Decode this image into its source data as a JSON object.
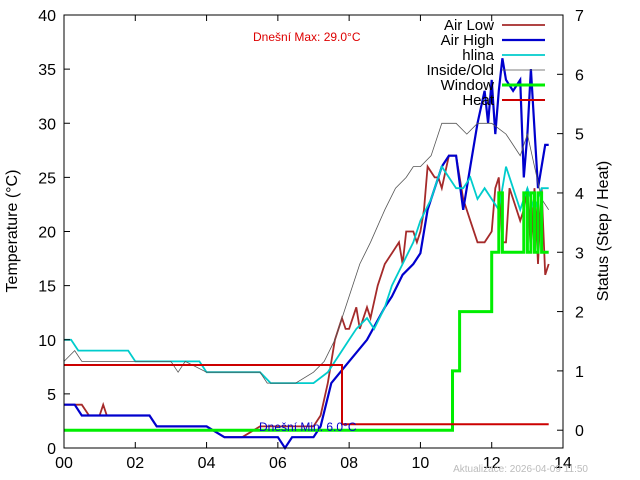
{
  "chart_data": {
    "type": "line",
    "x_unit": "hours",
    "xlim": [
      0,
      14
    ],
    "x_ticks": [
      "00",
      "02",
      "04",
      "06",
      "08",
      "10",
      "12",
      "14"
    ],
    "ylim": [
      0,
      40
    ],
    "y_ticks": [
      "0",
      "5",
      "10",
      "15",
      "20",
      "25",
      "30",
      "35",
      "40"
    ],
    "y2lim": [
      -0.3,
      7
    ],
    "y2_ticks": [
      "0",
      "1",
      "2",
      "3",
      "4",
      "5",
      "6",
      "7"
    ],
    "ylabel": "Temperature (°C)",
    "y2label": "Status (Step / Heat)",
    "legend_position": "top-right",
    "annotations": {
      "max_label": "Dnešní Max: 29.0°C",
      "min_label": "Dnešní Min: 6.0°C",
      "updated": "Aktualizace: 2026-04-09 11:50"
    },
    "colors": {
      "air_low": "#a52a2a",
      "air_high": "#0000cd",
      "hlina": "#00cccc",
      "inside": "#555555",
      "window": "#00ee00",
      "heat": "#cc0000"
    },
    "series": [
      {
        "name": "Air Low",
        "axis": "y1",
        "color": "#a52a2a",
        "width": 1.8,
        "x": [
          0,
          0.5,
          0.7,
          1.0,
          1.1,
          1.2,
          1.5,
          2.0,
          2.4,
          2.6,
          2.7,
          3.5,
          4.0,
          4.5,
          4.7,
          5.0,
          5.5,
          6.0,
          6.5,
          7.0,
          7.2,
          7.4,
          7.6,
          7.8,
          7.9,
          8.0,
          8.2,
          8.3,
          8.5,
          8.6,
          8.8,
          9.0,
          9.2,
          9.4,
          9.5,
          9.6,
          9.8,
          9.9,
          10.0,
          10.1,
          10.2,
          10.4,
          10.5,
          10.6,
          10.8,
          11.0,
          11.2,
          11.4,
          11.6,
          11.8,
          12.0,
          12.1,
          12.2,
          12.3,
          12.4,
          12.5,
          12.6,
          12.8,
          12.9,
          13.0,
          13.1,
          13.2,
          13.3,
          13.4,
          13.5,
          13.6
        ],
        "y": [
          4,
          4,
          3,
          3,
          4,
          3,
          3,
          3,
          3,
          2,
          2,
          2,
          2,
          1,
          1,
          1,
          2,
          2,
          2,
          2,
          3,
          6,
          10,
          12,
          11,
          11,
          13,
          11,
          13,
          12,
          15,
          17,
          18,
          19,
          17,
          20,
          20,
          19,
          20,
          22,
          26,
          25,
          25,
          24,
          27,
          27,
          23,
          21,
          19,
          19,
          20,
          24,
          25,
          19,
          19,
          24,
          23,
          21,
          22,
          24,
          18,
          24,
          17,
          24,
          16,
          17
        ]
      },
      {
        "name": "Air High",
        "axis": "y1",
        "color": "#0000cd",
        "width": 2.2,
        "x": [
          0,
          0.3,
          0.5,
          1.0,
          1.5,
          2.0,
          2.4,
          2.6,
          3.0,
          3.5,
          4.0,
          4.5,
          5.0,
          5.5,
          6.0,
          6.2,
          6.4,
          6.5,
          7.0,
          7.2,
          7.5,
          8.0,
          8.5,
          9.0,
          9.2,
          9.5,
          9.8,
          10.0,
          10.2,
          10.5,
          10.6,
          10.8,
          11.0,
          11.2,
          11.4,
          11.6,
          11.8,
          11.9,
          12.0,
          12.1,
          12.2,
          12.3,
          12.4,
          12.6,
          12.8,
          12.9,
          13.0,
          13.1,
          13.3,
          13.4,
          13.5,
          13.6
        ],
        "y": [
          4,
          4,
          3,
          3,
          3,
          3,
          3,
          2,
          2,
          2,
          2,
          1,
          1,
          1,
          1,
          0,
          1,
          1,
          1,
          2,
          6,
          8,
          10,
          13,
          14,
          16,
          17,
          18,
          22,
          25,
          26,
          27,
          27,
          22,
          26,
          30,
          33,
          30,
          34,
          29,
          33,
          36,
          34,
          33,
          34,
          25,
          29,
          35,
          24,
          26,
          28,
          28
        ]
      },
      {
        "name": "hlina",
        "axis": "y1",
        "color": "#00cccc",
        "width": 1.8,
        "x": [
          0,
          0.2,
          0.4,
          1.0,
          1.5,
          1.8,
          2.0,
          2.5,
          3.0,
          3.5,
          3.8,
          4.0,
          4.5,
          5.0,
          5.5,
          5.8,
          6.0,
          6.5,
          7.0,
          7.4,
          7.8,
          8.0,
          8.2,
          8.5,
          8.7,
          9.0,
          9.2,
          9.5,
          9.8,
          10.0,
          10.3,
          10.6,
          10.8,
          11.0,
          11.2,
          11.4,
          11.6,
          11.8,
          12.0,
          12.2,
          12.4,
          12.6,
          12.8,
          13.0,
          13.2,
          13.4,
          13.6
        ],
        "y": [
          10,
          10,
          9,
          9,
          9,
          9,
          8,
          8,
          8,
          8,
          8,
          7,
          7,
          7,
          7,
          6,
          6,
          6,
          6,
          7,
          9,
          10,
          11,
          12,
          11,
          13,
          15,
          17,
          19,
          21,
          23,
          26,
          25,
          24,
          24,
          25,
          23,
          24,
          23,
          22,
          26,
          24,
          22,
          24,
          22,
          24,
          24
        ]
      },
      {
        "name": "Inside/Old",
        "axis": "y1",
        "color": "#555555",
        "width": 0.8,
        "x": [
          0,
          0.3,
          0.5,
          1.0,
          1.5,
          2.0,
          2.5,
          3.0,
          3.2,
          3.4,
          4.0,
          4.5,
          5.0,
          5.5,
          5.7,
          6.0,
          6.5,
          7.0,
          7.3,
          7.6,
          7.8,
          8.0,
          8.3,
          8.6,
          9.0,
          9.3,
          9.6,
          9.8,
          10.0,
          10.3,
          10.6,
          11.0,
          11.3,
          11.6,
          11.8,
          12.0,
          12.4,
          12.6,
          12.8,
          13.0,
          13.2,
          13.4,
          13.6
        ],
        "y": [
          8,
          9,
          8,
          8,
          8,
          8,
          8,
          8,
          7,
          8,
          7,
          7,
          7,
          7,
          6,
          6,
          6,
          7,
          8,
          10,
          12,
          14,
          17,
          19,
          22,
          24,
          25,
          26,
          26,
          27,
          30,
          30,
          29,
          30,
          30,
          30,
          29,
          28,
          27,
          29,
          26,
          23,
          22
        ]
      },
      {
        "name": "Window",
        "axis": "y2",
        "color": "#00ee00",
        "width": 3,
        "step": true,
        "x": [
          0,
          10.7,
          10.9,
          11.1,
          12.0,
          12.2,
          12.3,
          12.8,
          12.9,
          13.0,
          13.1,
          13.2,
          13.3,
          13.4,
          13.6
        ],
        "y": [
          0,
          0,
          1,
          2,
          3,
          4,
          3,
          3,
          4,
          3,
          4,
          3,
          4,
          3,
          3
        ]
      },
      {
        "name": "Heat",
        "axis": "y2",
        "color": "#cc0000",
        "width": 2,
        "step": true,
        "x": [
          0,
          7.8,
          13.6
        ],
        "y": [
          1.1,
          0.1,
          0.1
        ]
      }
    ]
  }
}
